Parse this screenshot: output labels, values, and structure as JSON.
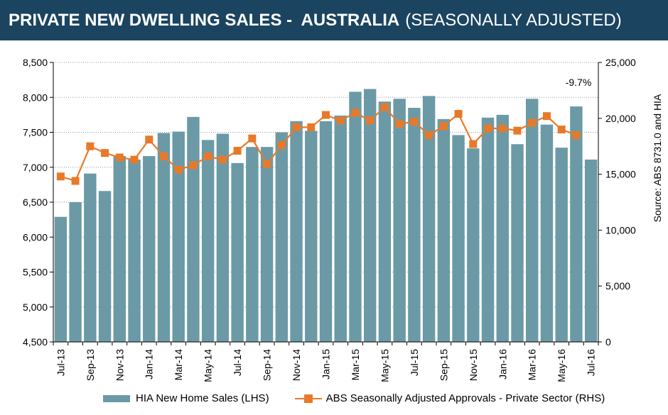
{
  "header": {
    "title": "PRIVATE NEW DWELLING SALES -  AUSTRALIA",
    "subtitle": "(SEASONALLY ADJUSTED)"
  },
  "chart_data": {
    "type": "bar+line",
    "categories": [
      "Jul-13",
      "Aug-13",
      "Sep-13",
      "Oct-13",
      "Nov-13",
      "Dec-13",
      "Jan-14",
      "Feb-14",
      "Mar-14",
      "Apr-14",
      "May-14",
      "Jun-14",
      "Jul-14",
      "Aug-14",
      "Sep-14",
      "Oct-14",
      "Nov-14",
      "Dec-14",
      "Jan-15",
      "Feb-15",
      "Mar-15",
      "Apr-15",
      "May-15",
      "Jun-15",
      "Jul-15",
      "Aug-15",
      "Sep-15",
      "Oct-15",
      "Nov-15",
      "Dec-15",
      "Jan-16",
      "Feb-16",
      "Mar-16",
      "Apr-16",
      "May-16",
      "Jun-16",
      "Jul-16"
    ],
    "x_tick_labels": [
      "Jul-13",
      "Sep-13",
      "Nov-13",
      "Jan-14",
      "Mar-14",
      "May-14",
      "Jul-14",
      "Sep-14",
      "Nov-14",
      "Jan-15",
      "Mar-15",
      "May-15",
      "Jul-15",
      "Sep-15",
      "Nov-15",
      "Jan-16",
      "Mar-16",
      "May-16",
      "Jul-16"
    ],
    "series": [
      {
        "name": "HIA New Home Sales (LHS)",
        "axis": "left",
        "type": "bar",
        "color": "#6b9aa6",
        "values": [
          6290,
          6500,
          6910,
          6660,
          7160,
          7110,
          7160,
          7490,
          7510,
          7720,
          7390,
          7480,
          7060,
          7290,
          7290,
          7500,
          7660,
          7520,
          7660,
          7740,
          8080,
          8120,
          7940,
          7980,
          7850,
          8020,
          7690,
          7460,
          7270,
          7710,
          7750,
          7330,
          7980,
          7610,
          7280,
          7870,
          7110
        ]
      },
      {
        "name": "ABS Seasonally Adjusted Approvals - Private Sector (RHS)",
        "axis": "right",
        "type": "line",
        "color": "#e8792a",
        "values": [
          14800,
          14400,
          17500,
          16900,
          16500,
          16300,
          18100,
          16600,
          15400,
          15800,
          16600,
          16300,
          17100,
          18200,
          15900,
          17600,
          19200,
          19200,
          20300,
          19800,
          20500,
          19800,
          21000,
          19500,
          19700,
          18500,
          19300,
          20400,
          17700,
          19100,
          19100,
          18900,
          19600,
          20200,
          19000,
          18500,
          null
        ]
      }
    ],
    "y_left": {
      "min": 4500,
      "max": 8500,
      "ticks": [
        "4,500",
        "5,000",
        "5,500",
        "6,000",
        "6,500",
        "7,000",
        "7,500",
        "8,000",
        "8,500"
      ]
    },
    "y_right": {
      "min": 0,
      "max": 25000,
      "ticks": [
        "0",
        "5,000",
        "10,000",
        "15,000",
        "20,000",
        "25,000"
      ]
    },
    "annotation": "-9.7%",
    "source": "Source: ABS 8731.0 and HIA",
    "grid": true,
    "legend_position": "bottom"
  }
}
